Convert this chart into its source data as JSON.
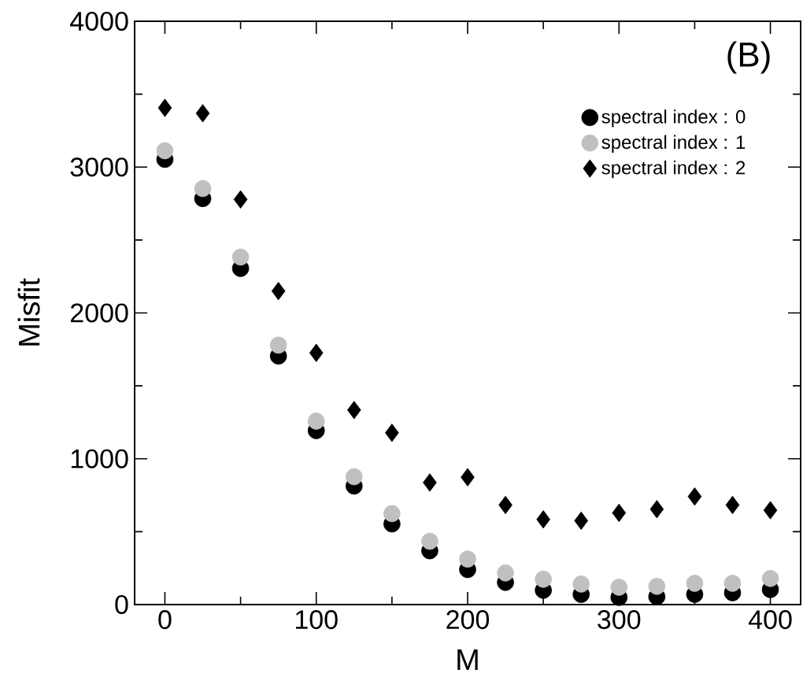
{
  "chart_data": {
    "type": "scatter",
    "xlabel": "M",
    "ylabel": "Misfit",
    "annotations": [
      "(B)"
    ],
    "x": [
      0,
      25,
      50,
      75,
      100,
      125,
      150,
      175,
      200,
      225,
      250,
      275,
      300,
      325,
      350,
      375,
      400
    ],
    "xlim": [
      -20,
      420
    ],
    "xticks": [
      0,
      100,
      200,
      300,
      400
    ],
    "ylim": [
      0,
      4000
    ],
    "yticks": [
      0,
      1000,
      2000,
      3000,
      4000
    ],
    "grid": false,
    "legend": "top right",
    "series": [
      {
        "name": "spectral index : 0",
        "color": "#000000",
        "marker": "circle",
        "values": [
          3053,
          2784,
          2305,
          1704,
          1193,
          813,
          553,
          369,
          240,
          152,
          98,
          70,
          49,
          54,
          70,
          81,
          103
        ]
      },
      {
        "name": "spectral index : 1",
        "color": "#c0c0c0",
        "marker": "circle",
        "values": [
          3112,
          2853,
          2383,
          1779,
          1258,
          877,
          624,
          434,
          312,
          217,
          174,
          141,
          119,
          125,
          146,
          146,
          179
        ]
      },
      {
        "name": "spectral index : 2",
        "color": "#000000",
        "marker": "diamond",
        "values": [
          3406,
          3369,
          2778,
          2150,
          1726,
          1334,
          1178,
          837,
          873,
          683,
          584,
          575,
          629,
          654,
          741,
          683,
          647
        ]
      }
    ]
  }
}
